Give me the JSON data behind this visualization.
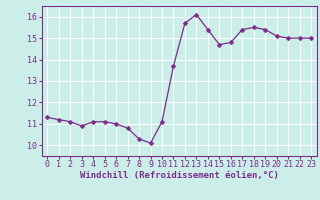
{
  "x": [
    0,
    1,
    2,
    3,
    4,
    5,
    6,
    7,
    8,
    9,
    10,
    11,
    12,
    13,
    14,
    15,
    16,
    17,
    18,
    19,
    20,
    21,
    22,
    23
  ],
  "y": [
    11.3,
    11.2,
    11.1,
    10.9,
    11.1,
    11.1,
    11.0,
    10.8,
    10.3,
    10.1,
    11.1,
    13.7,
    15.7,
    16.1,
    15.4,
    14.7,
    14.8,
    15.4,
    15.5,
    15.4,
    15.1,
    15.0,
    15.0,
    15.0
  ],
  "line_color": "#7B2D8B",
  "marker": "D",
  "marker_size": 2.5,
  "background_color": "#cceee8",
  "grid_color": "#b0ddd8",
  "xlabel": "Windchill (Refroidissement éolien,°C)",
  "xlabel_color": "#7B2D8B",
  "xlabel_fontsize": 6.5,
  "tick_color": "#7B2D8B",
  "tick_fontsize": 6.0,
  "ylim": [
    9.5,
    16.5
  ],
  "xlim": [
    -0.5,
    23.5
  ],
  "yticks": [
    10,
    11,
    12,
    13,
    14,
    15,
    16
  ],
  "xticks": [
    0,
    1,
    2,
    3,
    4,
    5,
    6,
    7,
    8,
    9,
    10,
    11,
    12,
    13,
    14,
    15,
    16,
    17,
    18,
    19,
    20,
    21,
    22,
    23
  ]
}
